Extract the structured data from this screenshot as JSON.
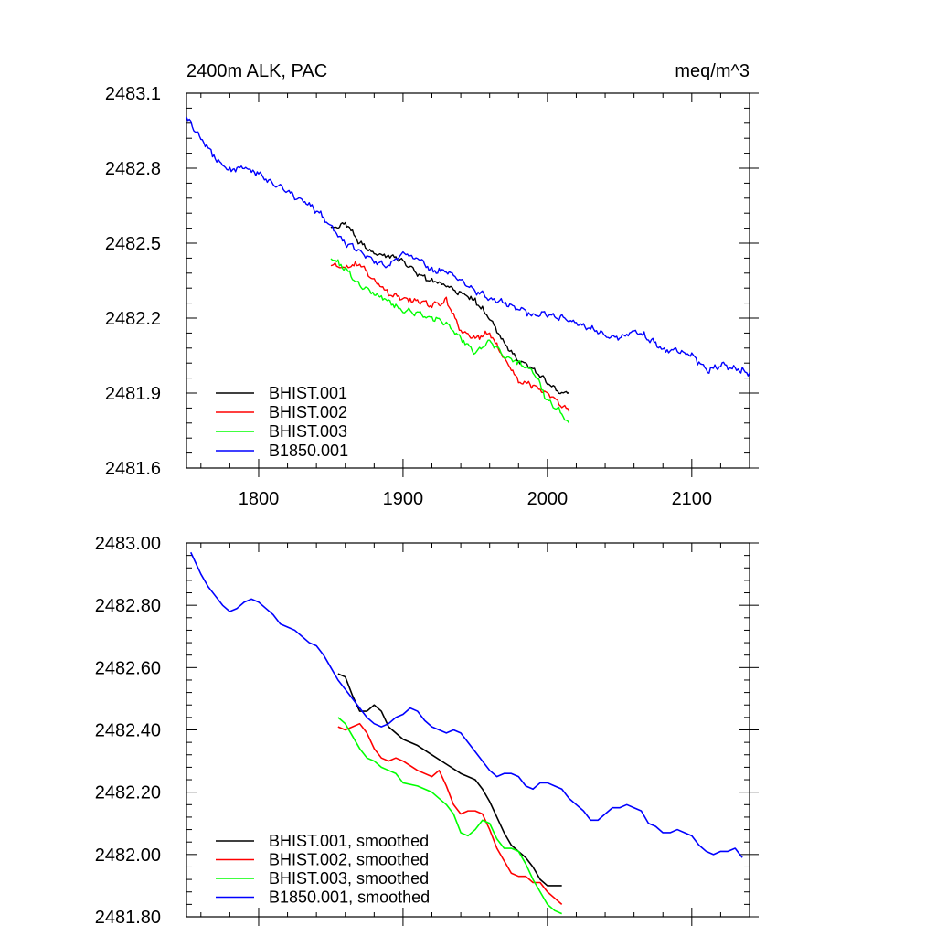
{
  "chart_data": [
    {
      "type": "line",
      "title": "2400m ALK, PAC",
      "units": "meq/m^3",
      "xlim": [
        1750,
        2140
      ],
      "ylim": [
        2481.6,
        2483.1
      ],
      "xticks": [
        1800,
        1900,
        2000,
        2100
      ],
      "xtick_labels": [
        "1800",
        "1900",
        "2000",
        "2100"
      ],
      "yticks": [
        2481.6,
        2481.9,
        2482.2,
        2482.5,
        2482.8,
        2483.1
      ],
      "ytick_labels": [
        "2481.6",
        "2481.9",
        "2482.2",
        "2482.5",
        "2482.8",
        "2483.1"
      ],
      "legend_position": "bottom-left",
      "series": [
        {
          "name": "BHIST.001",
          "color": "#000000",
          "wiggle": 0.022,
          "x": [
            1850,
            1860,
            1870,
            1880,
            1890,
            1900,
            1910,
            1920,
            1930,
            1940,
            1950,
            1960,
            1970,
            1980,
            1990,
            2000,
            2010,
            2015
          ],
          "y": [
            2482.56,
            2482.58,
            2482.5,
            2482.46,
            2482.45,
            2482.43,
            2482.38,
            2482.35,
            2482.33,
            2482.3,
            2482.27,
            2482.2,
            2482.1,
            2482.03,
            2482.0,
            2481.94,
            2481.9,
            2481.9
          ]
        },
        {
          "name": "BHIST.002",
          "color": "#ff0000",
          "wiggle": 0.022,
          "x": [
            1850,
            1860,
            1870,
            1880,
            1890,
            1900,
            1910,
            1920,
            1930,
            1940,
            1950,
            1960,
            1970,
            1980,
            1990,
            2000,
            2010,
            2015
          ],
          "y": [
            2482.41,
            2482.4,
            2482.42,
            2482.35,
            2482.3,
            2482.28,
            2482.27,
            2482.25,
            2482.27,
            2482.15,
            2482.12,
            2482.14,
            2482.04,
            2481.95,
            2481.93,
            2481.9,
            2481.85,
            2481.83
          ]
        },
        {
          "name": "BHIST.003",
          "color": "#00ff00",
          "wiggle": 0.022,
          "x": [
            1850,
            1860,
            1870,
            1880,
            1890,
            1900,
            1910,
            1920,
            1930,
            1940,
            1950,
            1960,
            1970,
            1980,
            1990,
            2000,
            2010,
            2015
          ],
          "y": [
            2482.44,
            2482.4,
            2482.33,
            2482.3,
            2482.27,
            2482.23,
            2482.22,
            2482.2,
            2482.18,
            2482.12,
            2482.06,
            2482.11,
            2482.05,
            2482.02,
            2481.99,
            2481.87,
            2481.82,
            2481.78
          ]
        },
        {
          "name": "B1850.001",
          "color": "#0000ff",
          "wiggle": 0.025,
          "x": [
            1750,
            1760,
            1770,
            1780,
            1790,
            1800,
            1810,
            1820,
            1830,
            1840,
            1850,
            1860,
            1870,
            1880,
            1890,
            1900,
            1910,
            1920,
            1930,
            1940,
            1950,
            1960,
            1970,
            1980,
            1990,
            2000,
            2010,
            2020,
            2030,
            2040,
            2050,
            2060,
            2070,
            2080,
            2090,
            2100,
            2110,
            2120,
            2130,
            2140
          ],
          "y": [
            2483.0,
            2482.92,
            2482.84,
            2482.79,
            2482.8,
            2482.78,
            2482.74,
            2482.71,
            2482.67,
            2482.63,
            2482.57,
            2482.5,
            2482.47,
            2482.43,
            2482.41,
            2482.46,
            2482.44,
            2482.39,
            2482.39,
            2482.35,
            2482.31,
            2482.28,
            2482.26,
            2482.24,
            2482.21,
            2482.22,
            2482.2,
            2482.18,
            2482.16,
            2482.13,
            2482.12,
            2482.15,
            2482.12,
            2482.07,
            2482.07,
            2482.05,
            2481.99,
            2482.01,
            2482.0,
            2481.98
          ]
        }
      ]
    },
    {
      "type": "line",
      "xlim": [
        1750,
        2140
      ],
      "ylim": [
        2481.8,
        2483.0
      ],
      "xticks": [
        1800,
        1900,
        2000,
        2100
      ],
      "yticks": [
        2481.8,
        2482.0,
        2482.2,
        2482.4,
        2482.6,
        2482.8,
        2483.0
      ],
      "ytick_labels": [
        "2481.80",
        "2482.00",
        "2482.20",
        "2482.40",
        "2482.60",
        "2482.80",
        "2483.00"
      ],
      "legend_position": "bottom-left",
      "series": [
        {
          "name": "BHIST.001, smoothed",
          "color": "#000000",
          "x": [
            1855,
            1860,
            1865,
            1870,
            1875,
            1880,
            1885,
            1890,
            1895,
            1900,
            1910,
            1920,
            1930,
            1940,
            1950,
            1955,
            1960,
            1965,
            1970,
            1975,
            1980,
            1985,
            1990,
            1995,
            2000,
            2005,
            2010
          ],
          "y": [
            2482.58,
            2482.57,
            2482.51,
            2482.46,
            2482.46,
            2482.48,
            2482.46,
            2482.41,
            2482.39,
            2482.37,
            2482.35,
            2482.32,
            2482.29,
            2482.26,
            2482.24,
            2482.21,
            2482.17,
            2482.12,
            2482.07,
            2482.03,
            2482.01,
            2481.99,
            2481.96,
            2481.92,
            2481.9,
            2481.9,
            2481.9
          ]
        },
        {
          "name": "BHIST.002, smoothed",
          "color": "#ff0000",
          "x": [
            1855,
            1860,
            1865,
            1870,
            1875,
            1880,
            1885,
            1890,
            1895,
            1900,
            1910,
            1920,
            1925,
            1930,
            1935,
            1940,
            1945,
            1950,
            1955,
            1960,
            1965,
            1970,
            1975,
            1980,
            1985,
            1990,
            1995,
            2000,
            2005,
            2010
          ],
          "y": [
            2482.41,
            2482.4,
            2482.41,
            2482.42,
            2482.39,
            2482.34,
            2482.31,
            2482.3,
            2482.31,
            2482.3,
            2482.27,
            2482.25,
            2482.27,
            2482.22,
            2482.16,
            2482.13,
            2482.14,
            2482.14,
            2482.13,
            2482.08,
            2482.02,
            2481.98,
            2481.94,
            2481.93,
            2481.93,
            2481.91,
            2481.91,
            2481.88,
            2481.86,
            2481.84
          ]
        },
        {
          "name": "BHIST.003, smoothed",
          "color": "#00ff00",
          "x": [
            1855,
            1860,
            1865,
            1870,
            1875,
            1880,
            1885,
            1890,
            1895,
            1900,
            1910,
            1920,
            1930,
            1935,
            1940,
            1945,
            1950,
            1955,
            1960,
            1965,
            1970,
            1975,
            1980,
            1985,
            1990,
            1995,
            2000,
            2005,
            2010
          ],
          "y": [
            2482.44,
            2482.42,
            2482.38,
            2482.34,
            2482.31,
            2482.3,
            2482.28,
            2482.27,
            2482.26,
            2482.23,
            2482.22,
            2482.2,
            2482.16,
            2482.13,
            2482.07,
            2482.06,
            2482.08,
            2482.11,
            2482.1,
            2482.05,
            2482.02,
            2482.02,
            2482.01,
            2481.97,
            2481.92,
            2481.88,
            2481.84,
            2481.82,
            2481.81
          ]
        },
        {
          "name": "B1850.001, smoothed",
          "color": "#0000ff",
          "x": [
            1753,
            1760,
            1765,
            1770,
            1775,
            1780,
            1785,
            1790,
            1795,
            1800,
            1805,
            1810,
            1815,
            1820,
            1825,
            1830,
            1835,
            1840,
            1845,
            1850,
            1855,
            1860,
            1865,
            1870,
            1875,
            1880,
            1885,
            1890,
            1895,
            1900,
            1905,
            1910,
            1915,
            1920,
            1925,
            1930,
            1935,
            1940,
            1945,
            1950,
            1955,
            1960,
            1965,
            1970,
            1975,
            1980,
            1985,
            1990,
            1995,
            2000,
            2005,
            2010,
            2015,
            2020,
            2025,
            2030,
            2035,
            2040,
            2045,
            2050,
            2055,
            2060,
            2065,
            2070,
            2075,
            2080,
            2085,
            2090,
            2095,
            2100,
            2105,
            2110,
            2115,
            2120,
            2125,
            2130,
            2135
          ],
          "y": [
            2482.97,
            2482.9,
            2482.86,
            2482.83,
            2482.8,
            2482.78,
            2482.79,
            2482.81,
            2482.82,
            2482.81,
            2482.79,
            2482.77,
            2482.74,
            2482.73,
            2482.72,
            2482.7,
            2482.68,
            2482.67,
            2482.64,
            2482.6,
            2482.56,
            2482.53,
            2482.5,
            2482.47,
            2482.44,
            2482.42,
            2482.41,
            2482.42,
            2482.44,
            2482.45,
            2482.47,
            2482.46,
            2482.43,
            2482.41,
            2482.4,
            2482.39,
            2482.4,
            2482.39,
            2482.36,
            2482.33,
            2482.3,
            2482.27,
            2482.25,
            2482.26,
            2482.26,
            2482.25,
            2482.22,
            2482.21,
            2482.23,
            2482.23,
            2482.22,
            2482.21,
            2482.18,
            2482.16,
            2482.14,
            2482.11,
            2482.11,
            2482.13,
            2482.15,
            2482.15,
            2482.16,
            2482.15,
            2482.14,
            2482.1,
            2482.09,
            2482.07,
            2482.07,
            2482.08,
            2482.07,
            2482.06,
            2482.03,
            2482.01,
            2482.0,
            2482.01,
            2482.01,
            2482.02,
            2481.99
          ]
        }
      ]
    }
  ]
}
